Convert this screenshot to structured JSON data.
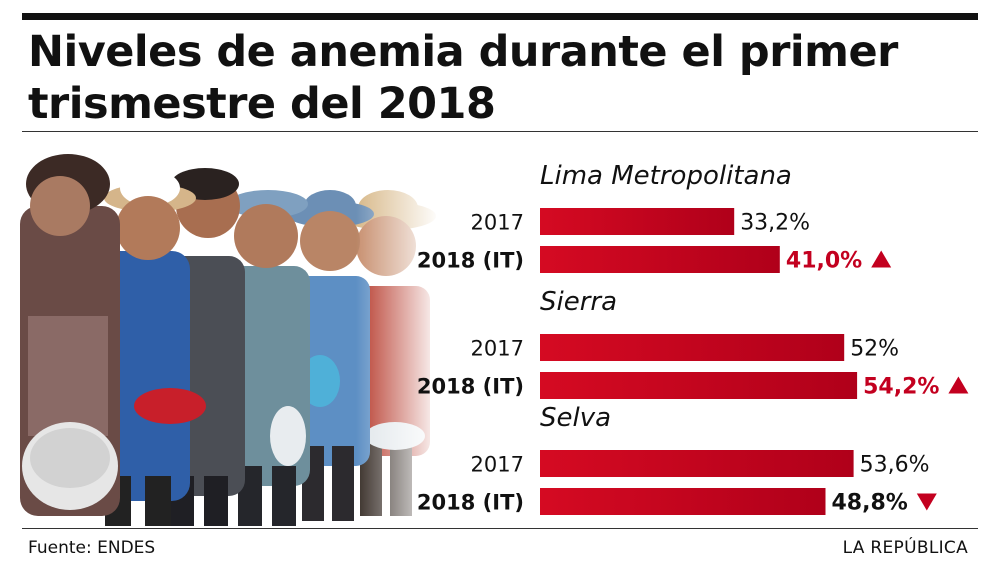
{
  "title": "Niveles de anemia durante el primer trismestre del 2018",
  "source": "Fuente: ENDES",
  "brand": "LA REPÚBLICA",
  "colors": {
    "bar": "#d50a22",
    "bar_dark": "#b0001a",
    "highlight": "#c3001f",
    "text": "#111111"
  },
  "chart_data": {
    "type": "bar",
    "orientation": "horizontal",
    "title": "Niveles de anemia durante el primer trismestre del 2018",
    "unit": "%",
    "xlim": [
      0,
      100
    ],
    "grid": false,
    "legend": "none",
    "groups": [
      {
        "name": "Lima Metropolitana",
        "bars": [
          {
            "label": "2017",
            "value": 33.2,
            "display": "33,2%",
            "style": "normal",
            "marker": ""
          },
          {
            "label": "2018 (IT)",
            "value": 41.0,
            "display": "41,0%",
            "style": "highlight",
            "marker": "up"
          }
        ]
      },
      {
        "name": "Sierra",
        "bars": [
          {
            "label": "2017",
            "value": 52.0,
            "display": "52%",
            "style": "normal",
            "marker": ""
          },
          {
            "label": "2018 (IT)",
            "value": 54.2,
            "display": "54,2%",
            "style": "highlight",
            "marker": "up"
          }
        ]
      },
      {
        "name": "Selva",
        "bars": [
          {
            "label": "2017",
            "value": 53.6,
            "display": "53,6%",
            "style": "normal",
            "marker": ""
          },
          {
            "label": "2018 (IT)",
            "value": 48.8,
            "display": "48,8%",
            "style": "down",
            "marker": "down"
          }
        ]
      }
    ]
  }
}
